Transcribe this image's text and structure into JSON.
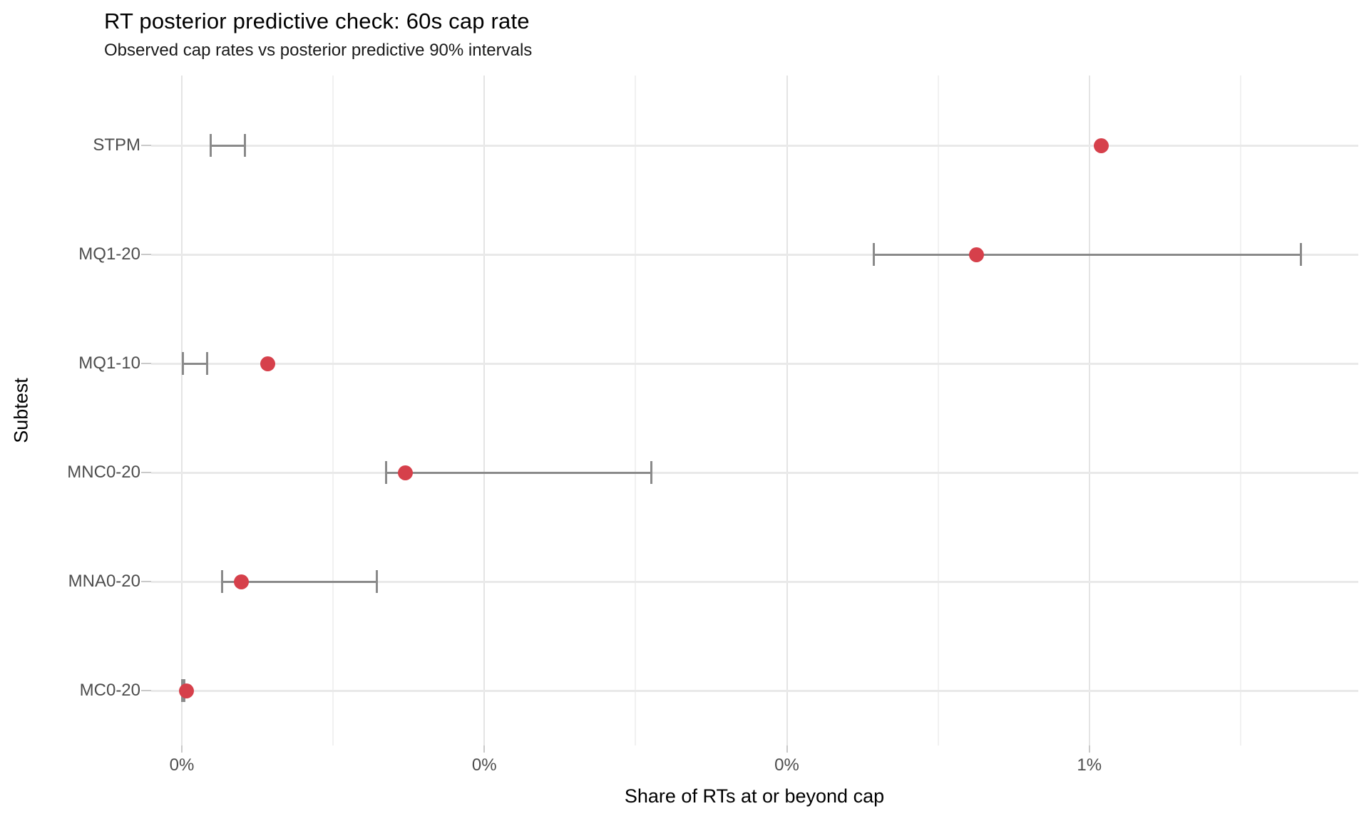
{
  "figure": {
    "title": "RT posterior predictive check: 60s cap rate",
    "subtitle": "Observed cap rates vs posterior predictive 90% intervals"
  },
  "chart_data": {
    "type": "scatter",
    "variant": "dot-with-horizontal-interval (pointrange)",
    "title": "RT posterior predictive check: 60s cap rate",
    "subtitle": "Observed cap rates vs posterior predictive 90% intervals",
    "xlabel": "Share of RTs at or beyond cap",
    "ylabel": "Subtest",
    "legend_position": "none",
    "grid": "vertical major+minor gridlines; one horizontal gridline per category",
    "x_unit": "percent",
    "xlim_pct": [
      -0.025,
      0.972
    ],
    "x_axis": {
      "ticks": [
        {
          "value": 0.0,
          "label": "0%"
        },
        {
          "value": 0.25,
          "label": "0%"
        },
        {
          "value": 0.5,
          "label": "0%"
        },
        {
          "value": 0.75,
          "label": "1%"
        }
      ],
      "minor_tick_values": [
        0.125,
        0.375,
        0.625,
        0.875
      ]
    },
    "categories_top_to_bottom": [
      "STPM",
      "MQ1-20",
      "MQ1-10",
      "MNC0-20",
      "MNA0-20",
      "MC0-20"
    ],
    "rows": [
      {
        "subtest": "STPM",
        "observed_pct": 0.76,
        "interval_lo_pct": 0.024,
        "interval_hi_pct": 0.052
      },
      {
        "subtest": "MQ1-20",
        "observed_pct": 0.657,
        "interval_lo_pct": 0.572,
        "interval_hi_pct": 0.925
      },
      {
        "subtest": "MQ1-10",
        "observed_pct": 0.071,
        "interval_lo_pct": 0.001,
        "interval_hi_pct": 0.021
      },
      {
        "subtest": "MNC0-20",
        "observed_pct": 0.185,
        "interval_lo_pct": 0.169,
        "interval_hi_pct": 0.388
      },
      {
        "subtest": "MNA0-20",
        "observed_pct": 0.049,
        "interval_lo_pct": 0.033,
        "interval_hi_pct": 0.161
      },
      {
        "subtest": "MC0-20",
        "observed_pct": 0.004,
        "interval_lo_pct": 0.0,
        "interval_hi_pct": 0.002
      }
    ],
    "interval_coverage": "90%",
    "colors": {
      "observed_point": "#d6404b",
      "interval_line": "#8a8a8a",
      "gridline_major": "#e4e4e4",
      "gridline_minor": "#f1f1f1",
      "axis_text": "#4d4d4d",
      "title_text": "#000000",
      "background": "#ffffff"
    }
  }
}
